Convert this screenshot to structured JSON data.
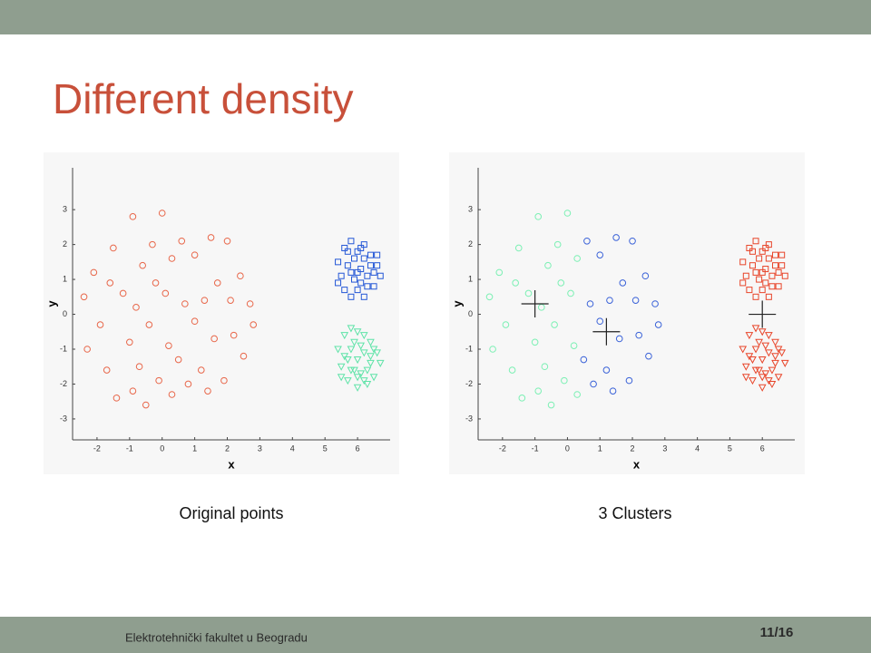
{
  "title": "Different density",
  "chart_data": [
    {
      "type": "scatter",
      "caption": "Original points",
      "xlabel": "x",
      "ylabel": "y",
      "xlim": [
        -2.75,
        7
      ],
      "ylim": [
        -3.6,
        4.2
      ],
      "xticks": [
        -2,
        -1,
        0,
        1,
        2,
        3,
        4,
        5,
        6
      ],
      "yticks": [
        -3,
        -2,
        -1,
        0,
        1,
        2,
        3
      ],
      "series": [
        {
          "color": "#e8674a",
          "marker": "circle",
          "x": [
            -2.1,
            -2.4,
            -1.9,
            -2.3,
            -1.5,
            -1.2,
            -1.7,
            -1.4,
            -0.9,
            -0.6,
            -0.8,
            -1.0,
            -0.7,
            -0.9,
            -0.3,
            -0.2,
            -0.4,
            -0.1,
            0.0,
            0.3,
            0.1,
            0.2,
            0.3,
            0.6,
            0.7,
            0.5,
            0.8,
            1.0,
            1.0,
            1.3,
            1.2,
            1.5,
            1.7,
            1.6,
            1.9,
            2.0,
            2.1,
            2.2,
            2.4,
            2.5,
            2.7,
            2.8,
            1.4,
            -0.5,
            -1.6
          ],
          "y": [
            1.2,
            0.5,
            -0.3,
            -1.0,
            1.9,
            0.6,
            -1.6,
            -2.4,
            2.8,
            1.4,
            0.2,
            -0.8,
            -1.5,
            -2.2,
            2.0,
            0.9,
            -0.3,
            -1.9,
            2.9,
            1.6,
            0.6,
            -0.9,
            -2.3,
            2.1,
            0.3,
            -1.3,
            -2.0,
            1.7,
            -0.2,
            0.4,
            -1.6,
            2.2,
            0.9,
            -0.7,
            -1.9,
            2.1,
            0.4,
            -0.6,
            1.1,
            -1.2,
            0.3,
            -0.3,
            -2.2,
            -2.6,
            0.9
          ]
        },
        {
          "color": "#2457d6",
          "marker": "square",
          "x": [
            5.4,
            5.6,
            5.8,
            6.0,
            6.2,
            6.4,
            6.6,
            6.7,
            5.5,
            5.7,
            5.9,
            6.1,
            6.3,
            6.5,
            5.6,
            5.8,
            6.0,
            6.2,
            6.4,
            5.9,
            6.1,
            5.7,
            6.3,
            6.6,
            5.4,
            6.0,
            6.2,
            5.8,
            6.5,
            6.1
          ],
          "y": [
            1.5,
            1.9,
            2.1,
            1.8,
            2.0,
            1.7,
            1.4,
            1.1,
            1.1,
            1.4,
            1.0,
            1.3,
            1.1,
            0.8,
            0.7,
            0.5,
            0.7,
            0.5,
            1.4,
            1.6,
            1.9,
            1.8,
            0.8,
            1.7,
            0.9,
            1.2,
            1.6,
            1.2,
            1.2,
            0.9
          ]
        },
        {
          "color": "#5fe3a8",
          "marker": "triangle",
          "x": [
            5.4,
            5.5,
            5.6,
            5.8,
            6.0,
            6.2,
            6.4,
            6.6,
            6.7,
            6.5,
            6.3,
            6.0,
            5.7,
            5.5,
            5.8,
            6.0,
            6.2,
            6.4,
            5.9,
            6.1,
            5.7,
            6.3,
            5.6,
            6.1,
            5.9,
            6.5,
            6.2,
            5.8,
            6.0,
            6.4
          ],
          "y": [
            -1.0,
            -1.5,
            -0.6,
            -0.4,
            -0.5,
            -0.6,
            -0.8,
            -1.1,
            -1.4,
            -1.8,
            -2.0,
            -2.1,
            -1.9,
            -1.8,
            -1.0,
            -1.3,
            -1.1,
            -1.4,
            -1.6,
            -1.7,
            -1.3,
            -1.6,
            -1.2,
            -0.9,
            -0.8,
            -1.0,
            -1.9,
            -1.6,
            -1.8,
            -1.2
          ]
        }
      ]
    },
    {
      "type": "scatter",
      "caption": "3 Clusters",
      "xlabel": "x",
      "ylabel": "y",
      "xlim": [
        -2.75,
        7
      ],
      "ylim": [
        -3.6,
        4.2
      ],
      "xticks": [
        -2,
        -1,
        0,
        1,
        2,
        3,
        4,
        5,
        6
      ],
      "yticks": [
        -3,
        -2,
        -1,
        0,
        1,
        2,
        3
      ],
      "series": [
        {
          "color": "#7cf0b4",
          "marker": "circle",
          "x": [
            -2.1,
            -2.4,
            -1.9,
            -2.3,
            -1.5,
            -1.2,
            -1.7,
            -1.4,
            -0.9,
            -0.6,
            -0.8,
            -1.0,
            -0.7,
            -0.9,
            -0.3,
            -0.2,
            -0.4,
            -0.1,
            0.0,
            0.3,
            0.1,
            0.2,
            0.3,
            -0.5,
            -1.6
          ],
          "y": [
            1.2,
            0.5,
            -0.3,
            -1.0,
            1.9,
            0.6,
            -1.6,
            -2.4,
            2.8,
            1.4,
            0.2,
            -0.8,
            -1.5,
            -2.2,
            2.0,
            0.9,
            -0.3,
            -1.9,
            2.9,
            1.6,
            0.6,
            -0.9,
            -2.3,
            -2.6,
            0.9
          ]
        },
        {
          "color": "#3a62d8",
          "marker": "circle",
          "x": [
            0.6,
            0.7,
            0.5,
            0.8,
            1.0,
            1.0,
            1.3,
            1.2,
            1.5,
            1.7,
            1.6,
            1.9,
            2.0,
            2.1,
            2.2,
            2.4,
            2.5,
            2.7,
            2.8,
            1.4
          ],
          "y": [
            2.1,
            0.3,
            -1.3,
            -2.0,
            1.7,
            -0.2,
            0.4,
            -1.6,
            2.2,
            0.9,
            -0.7,
            -1.9,
            2.1,
            0.4,
            -0.6,
            1.1,
            -1.2,
            0.3,
            -0.3,
            -2.2
          ]
        },
        {
          "color": "#e8452a",
          "marker": "square",
          "x": [
            5.4,
            5.6,
            5.8,
            6.0,
            6.2,
            6.4,
            6.6,
            6.7,
            5.5,
            5.7,
            5.9,
            6.1,
            6.3,
            6.5,
            5.6,
            5.8,
            6.0,
            6.2,
            6.4,
            5.9,
            6.1,
            5.7,
            6.3,
            6.6,
            5.4,
            6.0,
            6.2,
            5.8,
            6.5,
            6.1
          ],
          "y": [
            1.5,
            1.9,
            2.1,
            1.8,
            2.0,
            1.7,
            1.4,
            1.1,
            1.1,
            1.4,
            1.0,
            1.3,
            1.1,
            0.8,
            0.7,
            0.5,
            0.7,
            0.5,
            1.4,
            1.6,
            1.9,
            1.8,
            0.8,
            1.7,
            0.9,
            1.2,
            1.6,
            1.2,
            1.2,
            0.9
          ]
        },
        {
          "color": "#e8452a",
          "marker": "triangle",
          "x": [
            5.4,
            5.5,
            5.6,
            5.8,
            6.0,
            6.2,
            6.4,
            6.6,
            6.7,
            6.5,
            6.3,
            6.0,
            5.7,
            5.5,
            5.8,
            6.0,
            6.2,
            6.4,
            5.9,
            6.1,
            5.7,
            6.3,
            5.6,
            6.1,
            5.9,
            6.5,
            6.2,
            5.8,
            6.0,
            6.4
          ],
          "y": [
            -1.0,
            -1.5,
            -0.6,
            -0.4,
            -0.5,
            -0.6,
            -0.8,
            -1.1,
            -1.4,
            -1.8,
            -2.0,
            -2.1,
            -1.9,
            -1.8,
            -1.0,
            -1.3,
            -1.1,
            -1.4,
            -1.6,
            -1.7,
            -1.3,
            -1.6,
            -1.2,
            -0.9,
            -0.8,
            -1.0,
            -1.9,
            -1.6,
            -1.8,
            -1.2
          ]
        },
        {
          "color": "#222222",
          "marker": "plus",
          "x": [
            -1.0,
            1.2,
            6.0
          ],
          "y": [
            0.3,
            -0.5,
            0.0
          ]
        }
      ]
    }
  ],
  "footer": {
    "institution": "Elektrotehnički fakultet u Beogradu",
    "page": "11/16"
  }
}
